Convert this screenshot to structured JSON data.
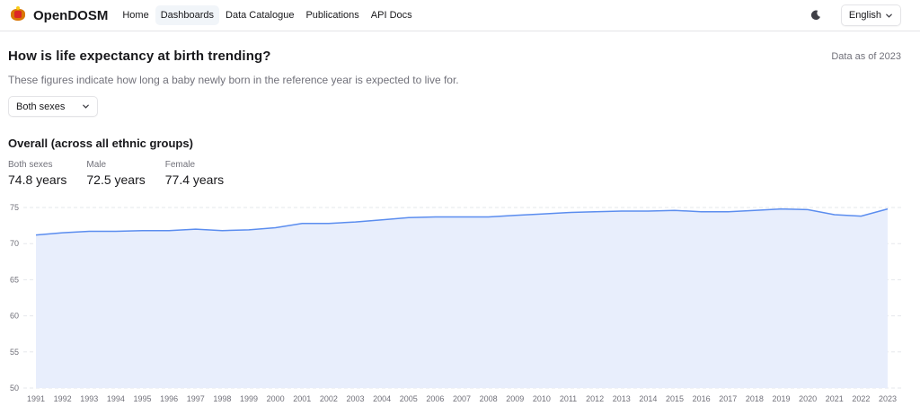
{
  "navbar": {
    "brand": "OpenDOSM",
    "links": [
      {
        "label": "Home",
        "active": false
      },
      {
        "label": "Dashboards",
        "active": true
      },
      {
        "label": "Data Catalogue",
        "active": false
      },
      {
        "label": "Publications",
        "active": false
      },
      {
        "label": "API Docs",
        "active": false
      }
    ],
    "theme_icon": "moon-icon",
    "language": "English"
  },
  "header": {
    "title": "How is life expectancy at birth trending?",
    "data_as_of": "Data as of 2023",
    "description": "These figures indicate how long a baby newly born in the reference year is expected to live for."
  },
  "filter": {
    "selected": "Both sexes"
  },
  "section": {
    "title": "Overall (across all ethnic groups)",
    "stats": [
      {
        "label": "Both sexes",
        "value": "74.8 years"
      },
      {
        "label": "Male",
        "value": "72.5 years"
      },
      {
        "label": "Female",
        "value": "77.4 years"
      }
    ]
  },
  "colors": {
    "line": "#5b8def",
    "fill": "#e8eefc",
    "grid": "#e5e7eb"
  },
  "chart_data": {
    "type": "area",
    "title": "Overall (across all ethnic groups)",
    "xlabel": "",
    "ylabel": "",
    "x": [
      1991,
      1992,
      1993,
      1994,
      1995,
      1996,
      1997,
      1998,
      1999,
      2000,
      2001,
      2002,
      2003,
      2004,
      2005,
      2006,
      2007,
      2008,
      2009,
      2010,
      2011,
      2012,
      2013,
      2014,
      2015,
      2016,
      2017,
      2018,
      2019,
      2020,
      2021,
      2022,
      2023
    ],
    "series": [
      {
        "name": "Both sexes",
        "values": [
          71.2,
          71.5,
          71.7,
          71.7,
          71.8,
          71.8,
          72.0,
          71.8,
          71.9,
          72.2,
          72.8,
          72.8,
          73.0,
          73.3,
          73.6,
          73.7,
          73.7,
          73.7,
          73.9,
          74.1,
          74.3,
          74.4,
          74.5,
          74.5,
          74.6,
          74.4,
          74.4,
          74.6,
          74.8,
          74.7,
          74.0,
          73.8,
          74.8
        ]
      }
    ],
    "ylim": [
      50,
      75
    ],
    "yticks": [
      50,
      55,
      60,
      65,
      70,
      75
    ],
    "grid": true,
    "legend": "none"
  }
}
